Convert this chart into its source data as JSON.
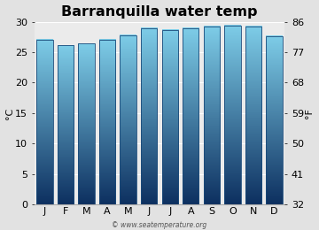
{
  "title": "Barranquilla water temp",
  "months": [
    "J",
    "F",
    "M",
    "A",
    "M",
    "J",
    "J",
    "A",
    "S",
    "O",
    "N",
    "D"
  ],
  "values_c": [
    27.0,
    26.1,
    26.4,
    27.0,
    27.8,
    28.9,
    28.6,
    28.9,
    29.2,
    29.4,
    29.2,
    27.6
  ],
  "ylim_c": [
    0,
    30
  ],
  "yticks_c": [
    0,
    5,
    10,
    15,
    20,
    25,
    30
  ],
  "yticks_f": [
    32,
    41,
    50,
    59,
    68,
    77,
    86
  ],
  "ylabel_left": "°C",
  "ylabel_right": "°F",
  "bar_color_top": "#7ecde8",
  "bar_color_bottom": "#0d3060",
  "bar_edge_color": "#1a4a7a",
  "background_color": "#e2e2e2",
  "plot_bg_color": "#ebebeb",
  "title_fontsize": 11.5,
  "axis_fontsize": 8,
  "tick_fontsize": 8,
  "watermark": "© www.seatemperature.org",
  "bar_width": 0.78
}
